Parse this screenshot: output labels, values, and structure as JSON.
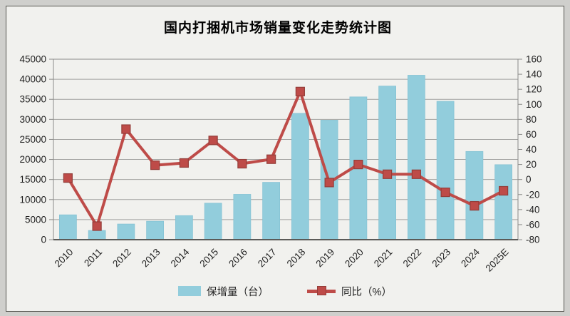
{
  "frame": {
    "page_background": "#cfcfcc",
    "chart_background": "#f1f1ee",
    "border_color": "#55554f"
  },
  "chart_data": {
    "type": "bar",
    "subtype": "combo-bar-line",
    "title": "国内打捆机市场销量变化走势统计图",
    "categories": [
      "2010",
      "2011",
      "2012",
      "2013",
      "2014",
      "2015",
      "2016",
      "2017",
      "2018",
      "2019",
      "2020",
      "2021",
      "2022",
      "2023",
      "2024",
      "2025E"
    ],
    "series": [
      {
        "name": "保增量（台）",
        "type": "bar",
        "axis": "left",
        "color": "#92cddc",
        "values": [
          6200,
          2300,
          3900,
          4600,
          6000,
          9100,
          11300,
          14300,
          31500,
          29800,
          35600,
          38300,
          41000,
          34500,
          22000,
          18700
        ]
      },
      {
        "name": "同比（%）",
        "type": "line",
        "axis": "right",
        "color": "#be4b48",
        "marker": "square",
        "marker_border_color": "#943d39",
        "values": [
          2,
          -62,
          67,
          19,
          22,
          52,
          21,
          27,
          117,
          -4,
          20,
          7,
          7,
          -17,
          -35,
          -15
        ]
      }
    ],
    "left_axis": {
      "min": 0,
      "max": 45000,
      "step": 5000,
      "tick_labels": [
        "45000",
        "40000",
        "35000",
        "30000",
        "25000",
        "20000",
        "15000",
        "10000",
        "5000",
        "0"
      ]
    },
    "right_axis": {
      "min": -80,
      "max": 160,
      "step": 20,
      "tick_labels": [
        "160",
        "140",
        "120",
        "100",
        "80",
        "60",
        "40",
        "20",
        "0",
        "-20",
        "-40",
        "-60",
        "-80"
      ]
    },
    "grid": true,
    "gridline_color": "#a3a3a1",
    "axis_line_color": "#8c8c8a",
    "x_label_rotation_deg": -45,
    "legend_position": "bottom"
  }
}
